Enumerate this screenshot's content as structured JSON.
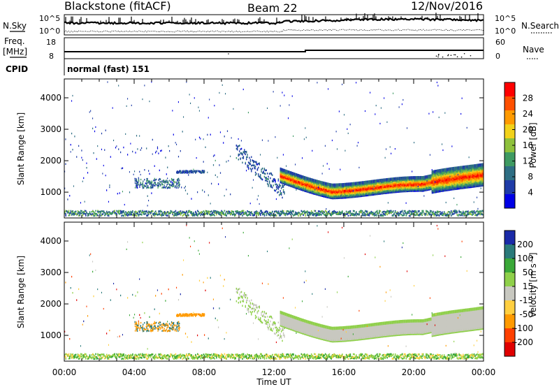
{
  "header": {
    "station": "Blackstone (fitACF)",
    "beam": "Beam 22",
    "date": "12/Nov/2016"
  },
  "noise_panel": {
    "left_label": "N.Sky",
    "right_label": "N.Search",
    "top_tick_left": "10^5",
    "bottom_tick_left": "10^0",
    "top_tick_right": "10^5",
    "bottom_tick_right": "10^0"
  },
  "freq_panel": {
    "left_label_1": "Freq.",
    "left_label_2": "[MHz]",
    "right_label": "Nave",
    "left_ticks": [
      "18",
      "8"
    ],
    "right_ticks": [
      "60",
      "0"
    ]
  },
  "cpid": {
    "label": "CPID",
    "value": "normal (fast) 151"
  },
  "chart_data": [
    {
      "type": "heatmap",
      "name": "power",
      "ylabel": "Slant Range [km]",
      "xlabel": "",
      "ylim": [
        180,
        4600
      ],
      "y_ticks": [
        "1000",
        "2000",
        "3000",
        "4000"
      ],
      "x_ticks": [
        "00:00",
        "04:00",
        "08:00",
        "12:00",
        "16:00",
        "20:00",
        "00:00"
      ],
      "colorbar": {
        "label": "Power [dB]",
        "ticks": [
          "4",
          "8",
          "12",
          "16",
          "20",
          "24",
          "28"
        ],
        "range": [
          0,
          30
        ],
        "colors": [
          "#0000e6",
          "#1f3ca8",
          "#2e6e84",
          "#3e9a62",
          "#8ec13c",
          "#f2d21a",
          "#ff9a00",
          "#ff5000",
          "#ff0000"
        ]
      }
    },
    {
      "type": "heatmap",
      "name": "velocity",
      "ylabel": "Slant Range [km]",
      "xlabel": "Time UT",
      "ylim": [
        180,
        4600
      ],
      "y_ticks": [
        "1000",
        "2000",
        "3000",
        "4000"
      ],
      "x_ticks": [
        "00:00",
        "04:00",
        "08:00",
        "12:00",
        "16:00",
        "20:00",
        "00:00"
      ],
      "colorbar": {
        "label": "Velocity [m s⁻¹]",
        "ticks": [
          "200",
          "100",
          "50",
          "15",
          "-15",
          "-50",
          "-100",
          "-200"
        ],
        "colors": [
          "#1a2aa8",
          "#2a7a7a",
          "#3aa838",
          "#8fd04a",
          "#c8c8c0",
          "#ffcf40",
          "#ff9a00",
          "#ff4000",
          "#e00000"
        ]
      }
    }
  ],
  "colors": {
    "ground_scatter": "#c8c8c0",
    "axis": "#000000"
  }
}
